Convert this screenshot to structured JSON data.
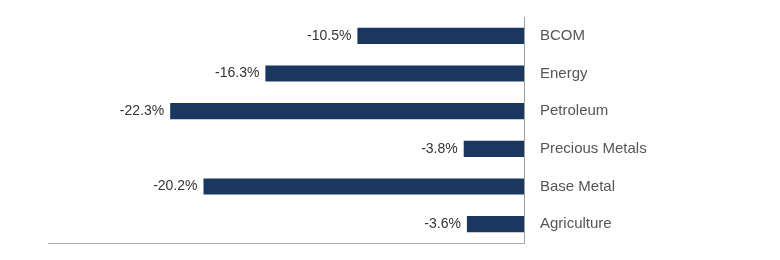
{
  "chart_data": {
    "type": "bar",
    "orientation": "horizontal",
    "categories": [
      "BCOM",
      "Energy",
      "Petroleum",
      "Precious Metals",
      "Base Metal",
      "Agriculture"
    ],
    "values": [
      -10.5,
      -16.3,
      -22.3,
      -3.8,
      -20.2,
      -3.6
    ],
    "value_labels": [
      "-10.5%",
      "-16.3%",
      "-22.3%",
      "-3.8%",
      "-20.2%",
      "-3.6%"
    ],
    "color": "#19375f",
    "xlim": [
      -30,
      0
    ],
    "grid": false,
    "data_labels": true,
    "tick_labels": "y"
  }
}
